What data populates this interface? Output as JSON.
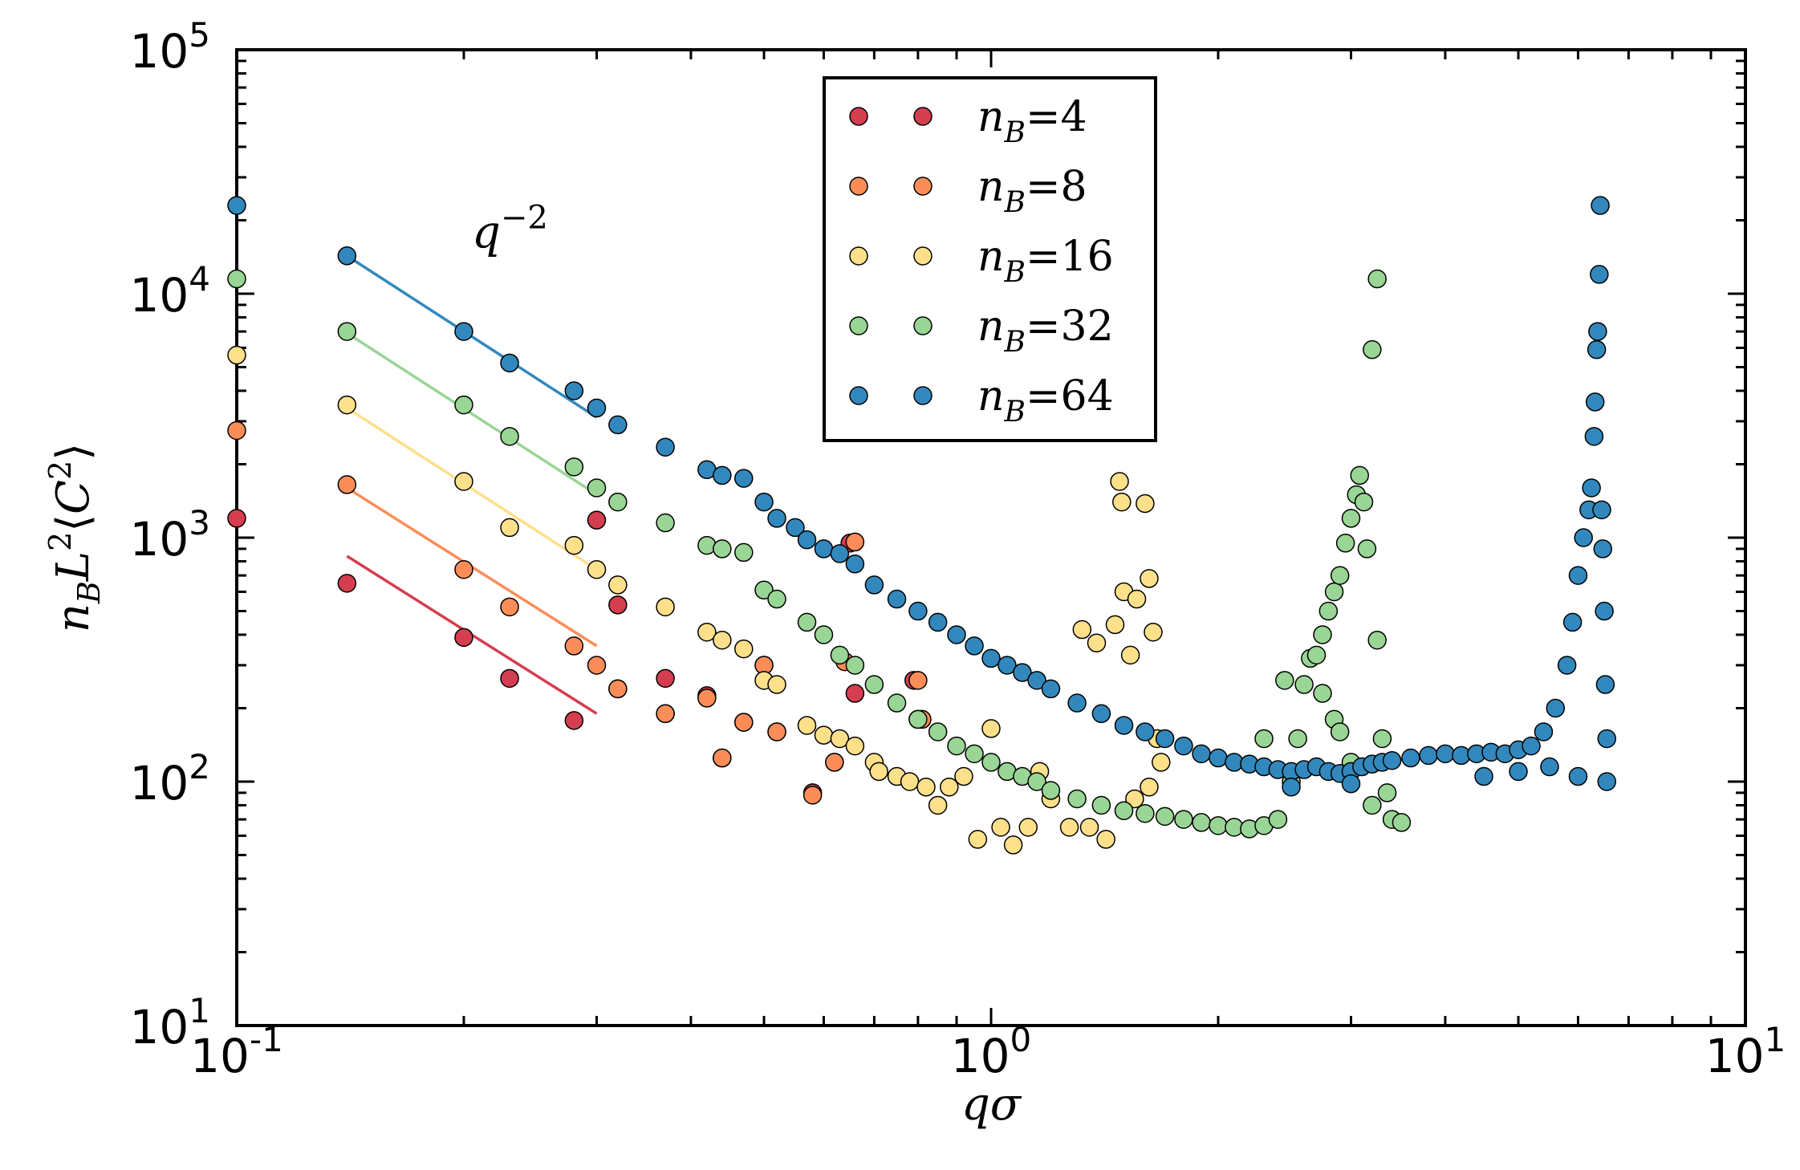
{
  "chart_data": {
    "type": "scatter",
    "xscale": "log",
    "yscale": "log",
    "xlim": [
      0.1,
      10
    ],
    "ylim": [
      10,
      100000
    ],
    "xlabel": "qσ",
    "ylabel": "n_B L^2 ⟨C^2⟩",
    "x_ticks": [
      {
        "value": 0.1,
        "base": "10",
        "exp": "-1"
      },
      {
        "value": 1,
        "base": "10",
        "exp": "0"
      },
      {
        "value": 10,
        "base": "10",
        "exp": "1"
      }
    ],
    "y_ticks": [
      {
        "value": 10,
        "base": "10",
        "exp": "1"
      },
      {
        "value": 100,
        "base": "10",
        "exp": "2"
      },
      {
        "value": 1000,
        "base": "10",
        "exp": "3"
      },
      {
        "value": 10000,
        "base": "10",
        "exp": "4"
      },
      {
        "value": 100000,
        "base": "10",
        "exp": "5"
      }
    ],
    "annotation": {
      "text": "q",
      "sup": "−2",
      "x": 0.205,
      "y": 18000
    },
    "legend": {
      "position": "top-center",
      "label_prefix": "n",
      "label_sub": "B"
    },
    "series": [
      {
        "name": "n_B=4",
        "value": "4",
        "color": "#d53e4f",
        "points": [
          [
            0.1,
            1200
          ],
          [
            0.14,
            650
          ],
          [
            0.2,
            390
          ],
          [
            0.23,
            265
          ],
          [
            0.28,
            178
          ],
          [
            0.3,
            1180
          ],
          [
            0.32,
            530
          ],
          [
            0.32,
            240
          ],
          [
            0.37,
            265
          ],
          [
            0.37,
            190
          ],
          [
            0.42,
            225
          ],
          [
            0.44,
            125
          ],
          [
            0.47,
            175
          ],
          [
            0.5,
            300
          ],
          [
            0.52,
            160
          ],
          [
            0.58,
            90
          ],
          [
            0.62,
            120
          ],
          [
            0.65,
            950
          ],
          [
            0.66,
            230
          ],
          [
            0.79,
            260
          ],
          [
            0.8,
            180
          ]
        ],
        "fit": {
          "x1": 0.14,
          "y1": 840,
          "x2": 0.3,
          "y2": 190
        }
      },
      {
        "name": "n_B=8",
        "value": "8",
        "color": "#fc8d59",
        "points": [
          [
            0.1,
            2750
          ],
          [
            0.14,
            1650
          ],
          [
            0.2,
            740
          ],
          [
            0.23,
            520
          ],
          [
            0.28,
            360
          ],
          [
            0.3,
            300
          ],
          [
            0.32,
            240
          ],
          [
            0.37,
            190
          ],
          [
            0.42,
            220
          ],
          [
            0.44,
            125
          ],
          [
            0.47,
            175
          ],
          [
            0.5,
            300
          ],
          [
            0.52,
            160
          ],
          [
            0.58,
            88
          ],
          [
            0.62,
            120
          ],
          [
            0.64,
            310
          ],
          [
            0.66,
            960
          ],
          [
            0.8,
            260
          ],
          [
            0.81,
            180
          ]
        ],
        "fit": {
          "x1": 0.14,
          "y1": 1600,
          "x2": 0.3,
          "y2": 360
        }
      },
      {
        "name": "n_B=16",
        "value": "16",
        "color": "#fee08b",
        "points": [
          [
            0.1,
            5600
          ],
          [
            0.14,
            3500
          ],
          [
            0.2,
            1700
          ],
          [
            0.23,
            1100
          ],
          [
            0.28,
            930
          ],
          [
            0.3,
            740
          ],
          [
            0.32,
            640
          ],
          [
            0.37,
            520
          ],
          [
            0.42,
            410
          ],
          [
            0.44,
            380
          ],
          [
            0.47,
            350
          ],
          [
            0.5,
            260
          ],
          [
            0.52,
            250
          ],
          [
            0.57,
            170
          ],
          [
            0.6,
            155
          ],
          [
            0.63,
            150
          ],
          [
            0.66,
            140
          ],
          [
            0.7,
            120
          ],
          [
            0.71,
            110
          ],
          [
            0.75,
            105
          ],
          [
            0.78,
            100
          ],
          [
            0.82,
            95
          ],
          [
            0.85,
            80
          ],
          [
            0.88,
            95
          ],
          [
            0.92,
            105
          ],
          [
            0.96,
            58
          ],
          [
            1.0,
            165
          ],
          [
            1.03,
            65
          ],
          [
            1.07,
            55
          ],
          [
            1.12,
            65
          ],
          [
            1.16,
            110
          ],
          [
            1.2,
            85
          ],
          [
            1.27,
            65
          ],
          [
            1.32,
            420
          ],
          [
            1.35,
            65
          ],
          [
            1.38,
            370
          ],
          [
            1.42,
            58
          ],
          [
            1.46,
            440
          ],
          [
            1.48,
            1700
          ],
          [
            1.49,
            1400
          ],
          [
            1.5,
            600
          ],
          [
            1.53,
            330
          ],
          [
            1.56,
            560
          ],
          [
            1.6,
            1380
          ],
          [
            1.62,
            680
          ],
          [
            1.64,
            410
          ],
          [
            1.66,
            150
          ],
          [
            1.68,
            120
          ],
          [
            1.62,
            95
          ],
          [
            1.55,
            85
          ]
        ]
      },
      {
        "name": "n_B=32",
        "value": "32",
        "color": "#99d594",
        "points": [
          [
            0.1,
            11500
          ],
          [
            0.14,
            7000
          ],
          [
            0.2,
            3500
          ],
          [
            0.23,
            2600
          ],
          [
            0.28,
            1950
          ],
          [
            0.3,
            1600
          ],
          [
            0.32,
            1400
          ],
          [
            0.37,
            1150
          ],
          [
            0.42,
            930
          ],
          [
            0.44,
            900
          ],
          [
            0.47,
            870
          ],
          [
            0.5,
            610
          ],
          [
            0.52,
            560
          ],
          [
            0.57,
            450
          ],
          [
            0.6,
            400
          ],
          [
            0.63,
            330
          ],
          [
            0.66,
            300
          ],
          [
            0.7,
            250
          ],
          [
            0.75,
            210
          ],
          [
            0.8,
            180
          ],
          [
            0.85,
            160
          ],
          [
            0.9,
            140
          ],
          [
            0.95,
            130
          ],
          [
            1.0,
            120
          ],
          [
            1.05,
            110
          ],
          [
            1.1,
            105
          ],
          [
            1.15,
            100
          ],
          [
            1.2,
            92
          ],
          [
            1.3,
            85
          ],
          [
            1.4,
            80
          ],
          [
            1.5,
            76
          ],
          [
            1.6,
            74
          ],
          [
            1.7,
            72
          ],
          [
            1.8,
            70
          ],
          [
            1.9,
            68
          ],
          [
            2.0,
            66
          ],
          [
            2.1,
            65
          ],
          [
            2.2,
            64
          ],
          [
            2.3,
            66
          ],
          [
            2.4,
            70
          ],
          [
            2.5,
            100
          ],
          [
            2.55,
            150
          ],
          [
            2.6,
            250
          ],
          [
            2.65,
            320
          ],
          [
            2.7,
            330
          ],
          [
            2.75,
            400
          ],
          [
            2.8,
            500
          ],
          [
            2.85,
            600
          ],
          [
            2.9,
            700
          ],
          [
            2.95,
            950
          ],
          [
            3.0,
            1200
          ],
          [
            3.05,
            1500
          ],
          [
            3.08,
            1800
          ],
          [
            3.12,
            1400
          ],
          [
            3.15,
            900
          ],
          [
            3.2,
            5900
          ],
          [
            3.25,
            11500
          ],
          [
            3.25,
            380
          ],
          [
            3.3,
            150
          ],
          [
            3.35,
            90
          ],
          [
            3.4,
            70
          ],
          [
            3.5,
            68
          ],
          [
            2.3,
            150
          ],
          [
            2.45,
            260
          ],
          [
            2.75,
            230
          ],
          [
            2.85,
            180
          ],
          [
            2.9,
            160
          ],
          [
            3.0,
            120
          ],
          [
            3.2,
            80
          ]
        ]
      },
      {
        "name": "n_B=64",
        "value": "64",
        "color": "#3288bd",
        "points": [
          [
            0.1,
            23000
          ],
          [
            0.14,
            14300
          ],
          [
            0.2,
            7000
          ],
          [
            0.23,
            5200
          ],
          [
            0.28,
            4000
          ],
          [
            0.3,
            3400
          ],
          [
            0.32,
            2900
          ],
          [
            0.37,
            2350
          ],
          [
            0.42,
            1900
          ],
          [
            0.44,
            1800
          ],
          [
            0.47,
            1750
          ],
          [
            0.5,
            1400
          ],
          [
            0.52,
            1200
          ],
          [
            0.55,
            1100
          ],
          [
            0.57,
            980
          ],
          [
            0.6,
            900
          ],
          [
            0.63,
            860
          ],
          [
            0.66,
            780
          ],
          [
            0.7,
            640
          ],
          [
            0.75,
            560
          ],
          [
            0.8,
            500
          ],
          [
            0.85,
            450
          ],
          [
            0.9,
            400
          ],
          [
            0.95,
            360
          ],
          [
            1.0,
            320
          ],
          [
            1.05,
            300
          ],
          [
            1.1,
            280
          ],
          [
            1.15,
            260
          ],
          [
            1.2,
            240
          ],
          [
            1.3,
            210
          ],
          [
            1.4,
            190
          ],
          [
            1.5,
            170
          ],
          [
            1.6,
            160
          ],
          [
            1.7,
            150
          ],
          [
            1.8,
            140
          ],
          [
            1.9,
            130
          ],
          [
            2.0,
            125
          ],
          [
            2.1,
            120
          ],
          [
            2.2,
            118
          ],
          [
            2.3,
            115
          ],
          [
            2.4,
            112
          ],
          [
            2.5,
            110
          ],
          [
            2.6,
            112
          ],
          [
            2.7,
            115
          ],
          [
            2.8,
            110
          ],
          [
            2.9,
            108
          ],
          [
            3.0,
            110
          ],
          [
            3.1,
            115
          ],
          [
            3.2,
            118
          ],
          [
            3.3,
            120
          ],
          [
            3.4,
            122
          ],
          [
            3.6,
            125
          ],
          [
            3.8,
            128
          ],
          [
            4.0,
            130
          ],
          [
            4.2,
            128
          ],
          [
            4.4,
            130
          ],
          [
            4.6,
            132
          ],
          [
            4.8,
            130
          ],
          [
            5.0,
            135
          ],
          [
            5.2,
            140
          ],
          [
            5.4,
            160
          ],
          [
            5.6,
            200
          ],
          [
            5.8,
            300
          ],
          [
            5.9,
            450
          ],
          [
            6.0,
            700
          ],
          [
            6.1,
            1000
          ],
          [
            6.2,
            1300
          ],
          [
            6.25,
            1600
          ],
          [
            6.3,
            2600
          ],
          [
            6.32,
            3600
          ],
          [
            6.35,
            5900
          ],
          [
            6.37,
            7000
          ],
          [
            6.4,
            12000
          ],
          [
            6.42,
            23000
          ],
          [
            6.45,
            1300
          ],
          [
            6.47,
            900
          ],
          [
            6.5,
            500
          ],
          [
            6.52,
            250
          ],
          [
            6.55,
            150
          ],
          [
            6.55,
            100
          ],
          [
            2.5,
            95
          ],
          [
            3.0,
            98
          ],
          [
            4.5,
            105
          ],
          [
            5.0,
            110
          ],
          [
            5.5,
            115
          ],
          [
            6.0,
            105
          ]
        ]
      }
    ]
  }
}
